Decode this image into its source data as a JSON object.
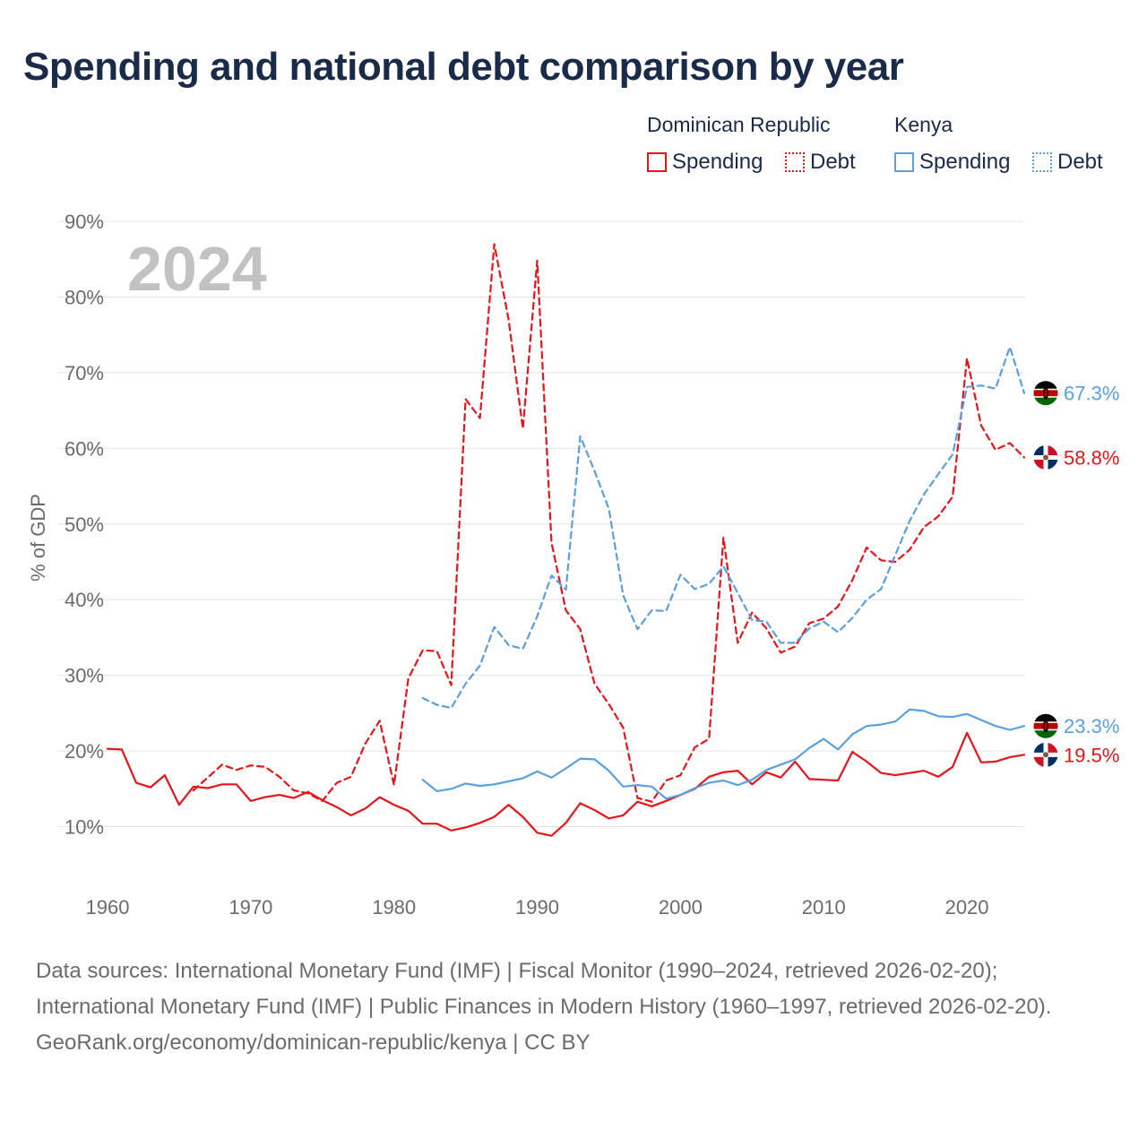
{
  "title": "Spending and national debt comparison by year",
  "legend": {
    "groups": [
      {
        "name": "Dominican Republic",
        "spending_label": "Spending",
        "debt_label": "Debt"
      },
      {
        "name": "Kenya",
        "spending_label": "Spending",
        "debt_label": "Debt"
      }
    ]
  },
  "colors": {
    "dominican_republic": "#e8141b",
    "kenya": "#5aa0de"
  },
  "footer": {
    "sources": "Data sources: International Monetary Fund (IMF) | Fiscal Monitor (1990–2024, retrieved 2026-02-20); International Monetary Fund (IMF) | Public Finances in Modern History (1960–1997, retrieved 2026-02-20).",
    "credit": "GeoRank.org/economy/dominican-republic/kenya | CC BY"
  },
  "chart_data": {
    "type": "line",
    "title": "Spending and national debt comparison by year",
    "year_watermark": "2024",
    "ylabel": "% of GDP",
    "xlabel": "",
    "xlim": [
      1960,
      2024
    ],
    "ylim": [
      0,
      90
    ],
    "x_ticks": [
      "1960",
      "1970",
      "1980",
      "1990",
      "2000",
      "2010",
      "2020"
    ],
    "y_ticks": [
      "10%",
      "20%",
      "30%",
      "40%",
      "50%",
      "60%",
      "70%",
      "80%",
      "90%"
    ],
    "grid": true,
    "series": [
      {
        "name": "Dominican Republic Spending",
        "country": "Dominican Republic",
        "style": "solid",
        "color": "#e8141b",
        "flag": "dominican-republic-flag",
        "end_label": "19.5%",
        "x": [
          1960,
          1961,
          1962,
          1963,
          1964,
          1965,
          1966,
          1967,
          1968,
          1969,
          1970,
          1971,
          1972,
          1973,
          1974,
          1975,
          1976,
          1977,
          1978,
          1979,
          1980,
          1981,
          1982,
          1983,
          1984,
          1985,
          1986,
          1987,
          1988,
          1989,
          1990,
          1991,
          1992,
          1993,
          1994,
          1995,
          1996,
          1997,
          1998,
          1999,
          2000,
          2001,
          2002,
          2003,
          2004,
          2005,
          2006,
          2007,
          2008,
          2009,
          2010,
          2011,
          2012,
          2013,
          2014,
          2015,
          2016,
          2017,
          2018,
          2019,
          2020,
          2021,
          2022,
          2023,
          2024
        ],
        "values": [
          20.3,
          20.2,
          15.8,
          15.2,
          16.8,
          12.9,
          15.3,
          15.1,
          15.6,
          15.6,
          13.4,
          13.9,
          14.2,
          13.8,
          14.6,
          13.5,
          12.6,
          11.5,
          12.4,
          13.9,
          12.9,
          12.1,
          10.4,
          10.4,
          9.5,
          9.9,
          10.5,
          11.3,
          12.9,
          11.3,
          9.2,
          8.8,
          10.5,
          13.1,
          12.2,
          11.1,
          11.5,
          13.3,
          12.7,
          13.4,
          14.2,
          15.0,
          16.6,
          17.2,
          17.4,
          15.6,
          17.2,
          16.5,
          18.6,
          16.3,
          16.2,
          16.1,
          19.9,
          18.6,
          17.1,
          16.8,
          17.1,
          17.4,
          16.6,
          17.9,
          22.4,
          18.5,
          18.6,
          19.2,
          19.5
        ]
      },
      {
        "name": "Dominican Republic Debt",
        "country": "Dominican Republic",
        "style": "dashed",
        "color": "#e8141b",
        "flag": "dominican-republic-flag",
        "end_label": "58.8%",
        "x": [
          1966,
          1967,
          1968,
          1969,
          1970,
          1971,
          1972,
          1973,
          1974,
          1975,
          1976,
          1977,
          1978,
          1979,
          1980,
          1981,
          1982,
          1983,
          1984,
          1985,
          1986,
          1987,
          1988,
          1989,
          1990,
          1991,
          1992,
          1993,
          1994,
          1995,
          1996,
          1997,
          1998,
          1999,
          2000,
          2001,
          2002,
          2003,
          2004,
          2005,
          2006,
          2007,
          2008,
          2009,
          2010,
          2011,
          2012,
          2013,
          2014,
          2015,
          2016,
          2017,
          2018,
          2019,
          2020,
          2021,
          2022,
          2023,
          2024
        ],
        "values": [
          14.8,
          16.5,
          18.2,
          17.5,
          18.1,
          17.9,
          16.6,
          14.8,
          14.4,
          13.4,
          15.8,
          16.6,
          21.0,
          24.0,
          15.5,
          29.6,
          33.3,
          33.2,
          28.7,
          66.5,
          64.0,
          87.0,
          77.0,
          62.6,
          84.8,
          47.5,
          38.6,
          36.1,
          28.9,
          26.2,
          23.1,
          13.8,
          13.3,
          16.1,
          16.8,
          20.5,
          21.6,
          48.2,
          34.3,
          38.3,
          36.2,
          33.0,
          33.8,
          36.9,
          37.5,
          39.1,
          42.6,
          46.9,
          45.2,
          45.0,
          46.6,
          49.6,
          51.0,
          53.6,
          71.9,
          63.0,
          59.8,
          60.7,
          58.8
        ]
      },
      {
        "name": "Kenya Spending",
        "country": "Kenya",
        "style": "solid",
        "color": "#5aa0de",
        "flag": "kenya-flag",
        "end_label": "23.3%",
        "x": [
          1982,
          1983,
          1984,
          1985,
          1986,
          1987,
          1988,
          1989,
          1990,
          1991,
          1992,
          1993,
          1994,
          1995,
          1996,
          1997,
          1998,
          1999,
          2000,
          2001,
          2002,
          2003,
          2004,
          2005,
          2006,
          2007,
          2008,
          2009,
          2010,
          2011,
          2012,
          2013,
          2014,
          2015,
          2016,
          2017,
          2018,
          2019,
          2020,
          2021,
          2022,
          2023,
          2024
        ],
        "values": [
          16.2,
          14.7,
          15.0,
          15.7,
          15.4,
          15.6,
          16.0,
          16.4,
          17.3,
          16.5,
          17.7,
          19.0,
          18.9,
          17.4,
          15.3,
          15.5,
          15.3,
          13.7,
          14.2,
          15.1,
          15.8,
          16.1,
          15.5,
          16.2,
          17.5,
          18.2,
          18.9,
          20.4,
          21.6,
          20.2,
          22.2,
          23.3,
          23.5,
          23.9,
          25.5,
          25.3,
          24.6,
          24.5,
          24.9,
          24.1,
          23.3,
          22.8,
          23.3
        ]
      },
      {
        "name": "Kenya Debt",
        "country": "Kenya",
        "style": "dashed",
        "color": "#5aa0de",
        "flag": "kenya-flag",
        "end_label": "67.3%",
        "x": [
          1982,
          1983,
          1984,
          1985,
          1986,
          1987,
          1988,
          1989,
          1990,
          1991,
          1992,
          1993,
          1994,
          1995,
          1996,
          1997,
          1998,
          1999,
          2000,
          2001,
          2002,
          2003,
          2004,
          2005,
          2006,
          2007,
          2008,
          2009,
          2010,
          2011,
          2012,
          2013,
          2014,
          2015,
          2016,
          2017,
          2018,
          2019,
          2020,
          2021,
          2022,
          2023,
          2024
        ],
        "values": [
          27.0,
          26.1,
          25.7,
          28.9,
          31.3,
          36.4,
          34.0,
          33.5,
          37.8,
          43.2,
          41.3,
          61.6,
          57.0,
          52.0,
          40.6,
          36.1,
          38.6,
          38.5,
          43.3,
          41.4,
          42.1,
          44.4,
          40.9,
          37.3,
          37.1,
          34.3,
          34.3,
          36.2,
          37.1,
          35.7,
          37.6,
          40.0,
          41.4,
          45.9,
          50.4,
          53.9,
          56.6,
          59.2,
          68.1,
          68.3,
          67.9,
          73.4,
          67.3
        ]
      }
    ]
  }
}
